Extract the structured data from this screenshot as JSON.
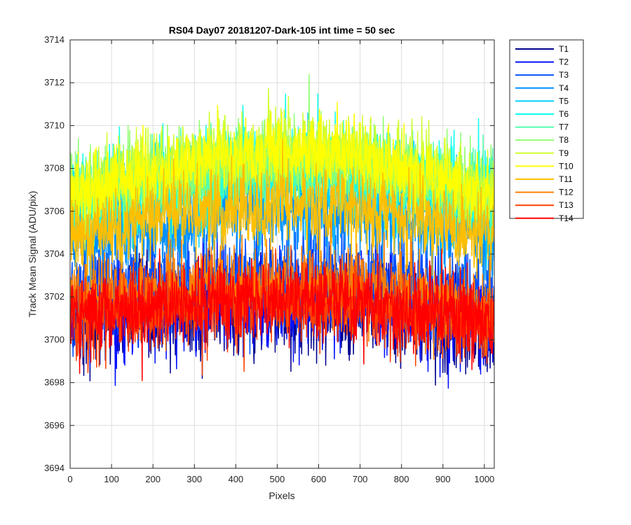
{
  "chart_data": {
    "type": "line",
    "title": "RS04 Day07 20181207-Dark-105 int time = 50 sec",
    "xlabel": "Pixels",
    "ylabel": "Track Mean Signal (ADU/pix)",
    "xlim": [
      0,
      1024
    ],
    "ylim": [
      3694,
      3714
    ],
    "xticks": [
      0,
      100,
      200,
      300,
      400,
      500,
      600,
      700,
      800,
      900,
      1000
    ],
    "yticks": [
      3694,
      3696,
      3698,
      3700,
      3702,
      3704,
      3706,
      3708,
      3710,
      3712,
      3714
    ],
    "grid": true,
    "legend_position": "outside-top-right",
    "x_sampled": [
      0,
      64,
      128,
      192,
      256,
      320,
      384,
      448,
      512,
      576,
      640,
      704,
      768,
      832,
      896,
      960,
      1024
    ],
    "series": [
      {
        "name": "T1",
        "color": "#00008F",
        "noise": 1.6,
        "values": [
          3701.0,
          3701.1,
          3701.2,
          3701.3,
          3701.4,
          3701.5,
          3701.6,
          3701.7,
          3701.7,
          3701.7,
          3701.6,
          3701.5,
          3701.4,
          3701.2,
          3701.0,
          3700.8,
          3700.6
        ]
      },
      {
        "name": "T2",
        "color": "#0010FF",
        "noise": 1.5,
        "values": [
          3701.2,
          3701.3,
          3701.4,
          3701.5,
          3701.6,
          3701.7,
          3701.8,
          3701.9,
          3701.9,
          3701.9,
          3701.8,
          3701.7,
          3701.6,
          3701.4,
          3701.2,
          3701.0,
          3700.8
        ]
      },
      {
        "name": "T3",
        "color": "#0050FF",
        "noise": 1.4,
        "values": [
          3702.2,
          3702.3,
          3702.4,
          3702.5,
          3702.6,
          3702.7,
          3702.8,
          3702.9,
          3702.9,
          3702.9,
          3702.8,
          3702.7,
          3702.6,
          3702.4,
          3702.2,
          3702.0,
          3701.8
        ]
      },
      {
        "name": "T4",
        "color": "#0090FF",
        "noise": 1.4,
        "values": [
          3704.8,
          3705.0,
          3705.2,
          3705.4,
          3705.6,
          3705.8,
          3706.0,
          3706.1,
          3706.2,
          3706.2,
          3706.1,
          3706.0,
          3705.8,
          3705.6,
          3705.3,
          3705.0,
          3704.7
        ]
      },
      {
        "name": "T5",
        "color": "#00D0FF",
        "noise": 1.3,
        "values": [
          3706.0,
          3706.2,
          3706.4,
          3706.6,
          3706.8,
          3707.0,
          3707.2,
          3707.3,
          3707.4,
          3707.4,
          3707.3,
          3707.2,
          3707.0,
          3706.8,
          3706.5,
          3706.2,
          3705.9
        ]
      },
      {
        "name": "T6",
        "color": "#10FFEF",
        "noise": 1.3,
        "values": [
          3706.8,
          3707.0,
          3707.2,
          3707.4,
          3707.6,
          3707.8,
          3708.0,
          3708.1,
          3708.2,
          3708.2,
          3708.1,
          3708.0,
          3707.8,
          3707.6,
          3707.3,
          3707.0,
          3706.7
        ]
      },
      {
        "name": "T7",
        "color": "#50FFAF",
        "noise": 1.2,
        "values": [
          3706.6,
          3706.8,
          3707.0,
          3707.2,
          3707.4,
          3707.6,
          3707.8,
          3707.9,
          3708.0,
          3708.0,
          3707.9,
          3707.8,
          3707.6,
          3707.4,
          3707.1,
          3706.8,
          3706.5
        ]
      },
      {
        "name": "T8",
        "color": "#90FF6F",
        "noise": 1.2,
        "values": [
          3706.9,
          3707.1,
          3707.3,
          3707.5,
          3707.7,
          3707.9,
          3708.1,
          3708.2,
          3708.3,
          3708.3,
          3708.2,
          3708.1,
          3707.9,
          3707.7,
          3707.4,
          3707.1,
          3706.8
        ]
      },
      {
        "name": "T9",
        "color": "#CFFF30",
        "noise": 1.2,
        "values": [
          3707.0,
          3707.3,
          3707.6,
          3707.9,
          3708.2,
          3708.5,
          3708.7,
          3708.8,
          3708.9,
          3708.9,
          3708.8,
          3708.6,
          3708.3,
          3708.0,
          3707.6,
          3707.2,
          3706.8
        ]
      },
      {
        "name": "T10",
        "color": "#FFFF00",
        "noise": 1.1,
        "values": [
          3706.8,
          3707.1,
          3707.4,
          3707.7,
          3708.0,
          3708.3,
          3708.5,
          3708.7,
          3708.8,
          3708.8,
          3708.7,
          3708.5,
          3708.2,
          3707.9,
          3707.5,
          3707.1,
          3706.7
        ]
      },
      {
        "name": "T11",
        "color": "#FFBF00",
        "noise": 1.2,
        "values": [
          3705.0,
          3705.2,
          3705.4,
          3705.6,
          3705.8,
          3706.0,
          3706.1,
          3706.2,
          3706.3,
          3706.3,
          3706.2,
          3706.1,
          3705.9,
          3705.7,
          3705.4,
          3705.1,
          3704.8
        ]
      },
      {
        "name": "T12",
        "color": "#FF8000",
        "noise": 1.3,
        "values": [
          3701.8,
          3701.9,
          3702.0,
          3702.1,
          3702.2,
          3702.3,
          3702.4,
          3702.5,
          3702.5,
          3702.5,
          3702.4,
          3702.3,
          3702.2,
          3702.0,
          3701.8,
          3701.6,
          3701.4
        ]
      },
      {
        "name": "T13",
        "color": "#FF4000",
        "noise": 1.3,
        "values": [
          3701.1,
          3701.2,
          3701.3,
          3701.4,
          3701.5,
          3701.6,
          3701.7,
          3701.8,
          3701.8,
          3701.8,
          3701.7,
          3701.6,
          3701.5,
          3701.3,
          3701.1,
          3700.9,
          3700.7
        ]
      },
      {
        "name": "T14",
        "color": "#FF0000",
        "noise": 1.2,
        "values": [
          3701.2,
          3701.3,
          3701.4,
          3701.5,
          3701.6,
          3701.7,
          3701.8,
          3701.9,
          3701.9,
          3701.9,
          3701.8,
          3701.7,
          3701.6,
          3701.4,
          3701.2,
          3701.0,
          3700.8
        ]
      }
    ]
  }
}
